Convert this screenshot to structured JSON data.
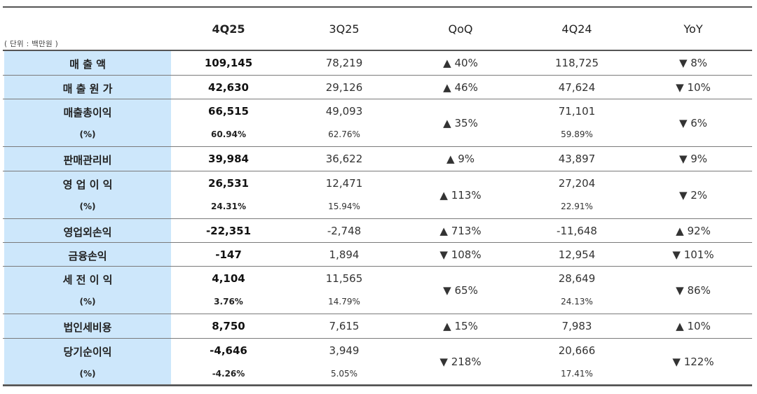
{
  "unit_label": "( 단위 : 백만원 )",
  "headers": [
    "4Q25",
    "3Q25",
    "QoQ",
    "4Q24",
    "YoY"
  ],
  "rows": [
    {
      "label": "매 출 액",
      "q425": "109,145",
      "q325": "78,219",
      "qoq": "▲ 40%",
      "q424": "118,725",
      "yoy": "▼ 8%"
    },
    {
      "label": "매 출 원 가",
      "q425": "42,630",
      "q325": "29,126",
      "qoq": "▲ 46%",
      "q424": "47,624",
      "yoy": "▼ 10%"
    },
    {
      "label": "매출총이익",
      "sub_label": "(%)",
      "q425": "66,515",
      "q425_pct": "60.94%",
      "q325": "49,093",
      "q325_pct": "62.76%",
      "qoq": "▲ 35%",
      "q424": "71,101",
      "q424_pct": "59.89%",
      "yoy": "▼ 6%"
    },
    {
      "label": "판매관리비",
      "q425": "39,984",
      "q325": "36,622",
      "qoq": "▲ 9%",
      "q424": "43,897",
      "yoy": "▼ 9%"
    },
    {
      "label": "영 업 이 익",
      "sub_label": "(%)",
      "q425": "26,531",
      "q425_pct": "24.31%",
      "q325": "12,471",
      "q325_pct": "15.94%",
      "qoq": "▲ 113%",
      "q424": "27,204",
      "q424_pct": "22.91%",
      "yoy": "▼ 2%"
    },
    {
      "label": "영업외손익",
      "q425": "-22,351",
      "q325": "-2,748",
      "qoq": "▲ 713%",
      "q424": "-11,648",
      "yoy": "▲ 92%"
    },
    {
      "label": "금융손익",
      "q425": "-147",
      "q325": "1,894",
      "qoq": "▼ 108%",
      "q424": "12,954",
      "yoy": "▼ 101%"
    },
    {
      "label": "세 전 이 익",
      "sub_label": "(%)",
      "q425": "4,104",
      "q425_pct": "3.76%",
      "q325": "11,565",
      "q325_pct": "14.79%",
      "qoq": "▼ 65%",
      "q424": "28,649",
      "q424_pct": "24.13%",
      "yoy": "▼ 86%"
    },
    {
      "label": "법인세비용",
      "q425": "8,750",
      "q325": "7,615",
      "qoq": "▲ 15%",
      "q424": "7,983",
      "yoy": "▲ 10%"
    },
    {
      "label": "당기순이익",
      "sub_label": "(%)",
      "q425": "-4,646",
      "q425_pct": "-4.26%",
      "q325": "3,949",
      "q325_pct": "5.05%",
      "qoq": "▼ 218%",
      "q424": "20,666",
      "q424_pct": "17.41%",
      "yoy": "▼ 122%"
    }
  ]
}
